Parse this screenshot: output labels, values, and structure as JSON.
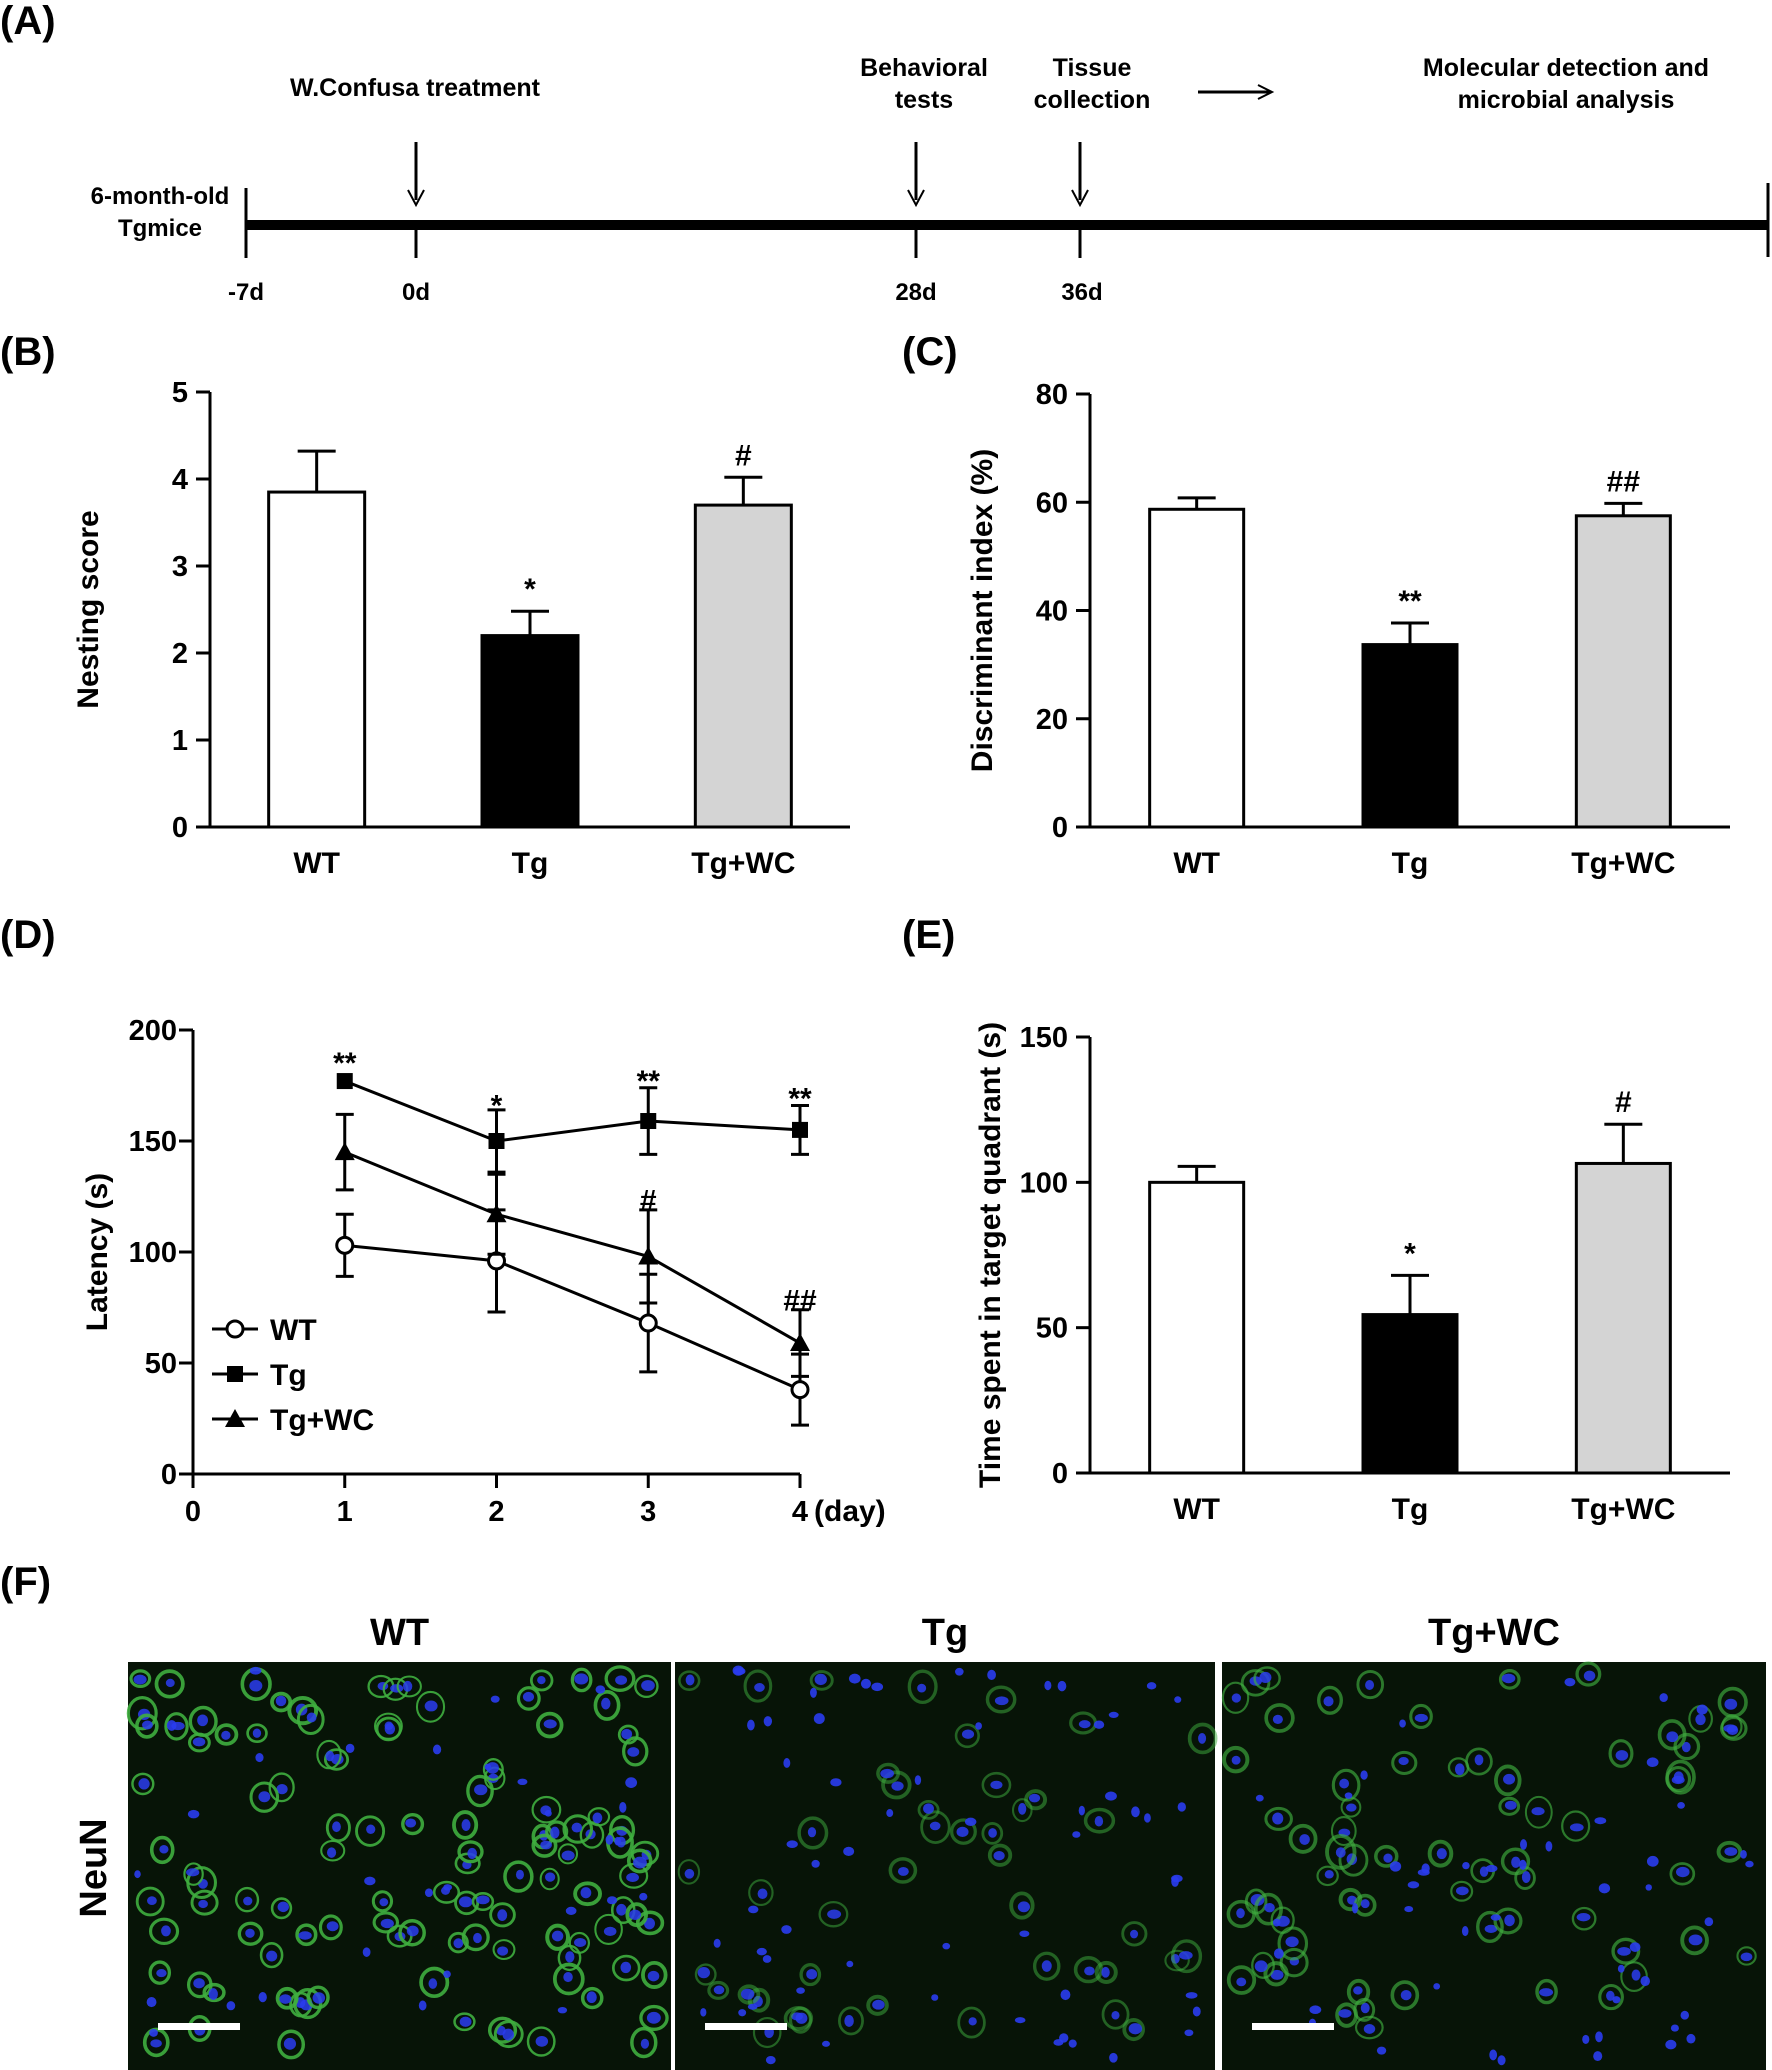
{
  "panel_labels": [
    "(A)",
    "(B)",
    "(C)",
    "(D)",
    "(E)",
    "(F)"
  ],
  "timeline": {
    "start_label": [
      "6-month-old",
      "Tgmice"
    ],
    "ticks": [
      "-7d",
      "0d",
      "28d",
      "36d"
    ],
    "events": [
      {
        "lines": [
          "W.Confusa treatment"
        ]
      },
      {
        "lines": [
          "Behavioral",
          "tests"
        ]
      },
      {
        "lines": [
          "Tissue",
          "collection"
        ]
      }
    ],
    "outcome": [
      "Molecular detection and",
      "microbial analysis"
    ]
  },
  "colors": {
    "WT": "#ffffff",
    "Tg": "#000000",
    "Tg+WC": "#d4d4d4",
    "axis": "#000000"
  },
  "chart_data": [
    {
      "panel": "(B)",
      "type": "bar",
      "categories": [
        "WT",
        "Tg",
        "Tg+WC"
      ],
      "values": [
        3.85,
        2.2,
        3.7
      ],
      "errors": [
        0.47,
        0.28,
        0.32
      ],
      "annotations": [
        "",
        "*",
        "#"
      ],
      "ylabel": "Nesting score",
      "xlabel": "",
      "ylim": [
        0,
        5
      ],
      "yticks": [
        0,
        1,
        2,
        3,
        4,
        5
      ]
    },
    {
      "panel": "(C)",
      "type": "bar",
      "categories": [
        "WT",
        "Tg",
        "Tg+WC"
      ],
      "values": [
        58.7,
        33.7,
        57.5
      ],
      "errors": [
        2.1,
        4.0,
        2.3
      ],
      "annotations": [
        "",
        "**",
        "##"
      ],
      "ylabel": "Discriminant index (%)",
      "xlabel": "",
      "ylim": [
        0,
        80
      ],
      "yticks": [
        0,
        20,
        40,
        60,
        80
      ]
    },
    {
      "panel": "(D)",
      "type": "line",
      "x": [
        1,
        2,
        3,
        4
      ],
      "series": [
        {
          "name": "WT",
          "marker": "circle-open",
          "values": [
            103,
            96,
            68,
            38
          ],
          "errors": [
            14,
            23,
            22,
            16
          ]
        },
        {
          "name": "Tg",
          "marker": "square",
          "values": [
            177,
            150,
            159,
            155
          ],
          "errors": [
            0,
            14,
            15,
            11
          ]
        },
        {
          "name": "Tg+WC",
          "marker": "triangle",
          "values": [
            145,
            117,
            98,
            59
          ],
          "errors": [
            17,
            18,
            21,
            15
          ]
        }
      ],
      "annotations": [
        {
          "x": 1,
          "y": 186,
          "text": "**"
        },
        {
          "x": 2,
          "y": 167,
          "text": "*"
        },
        {
          "x": 3,
          "y": 178,
          "text": "**"
        },
        {
          "x": 4,
          "y": 170,
          "text": "**"
        },
        {
          "x": 3,
          "y": 124,
          "text": "#"
        },
        {
          "x": 4,
          "y": 79,
          "text": "##"
        }
      ],
      "ylabel": "Latency (s)",
      "xlabel": "",
      "x_unit": "(day)",
      "xlim": [
        0,
        4
      ],
      "ylim": [
        0,
        200
      ],
      "xticks": [
        0,
        1,
        2,
        3,
        4
      ],
      "yticks": [
        0,
        50,
        100,
        150,
        200
      ],
      "legend": "bottom-left"
    },
    {
      "panel": "(E)",
      "type": "bar",
      "categories": [
        "WT",
        "Tg",
        "Tg+WC"
      ],
      "values": [
        100,
        54.5,
        106.5
      ],
      "errors": [
        5.5,
        13.5,
        13.5
      ],
      "annotations": [
        "",
        "*",
        "#"
      ],
      "ylabel": "Time spent in target quadrant (s)",
      "xlabel": "",
      "ylim": [
        0,
        150
      ],
      "yticks": [
        0,
        50,
        100,
        150
      ]
    }
  ],
  "micrographs": {
    "row_label": "NeuN",
    "columns": [
      "WT",
      "Tg",
      "Tg+WC"
    ],
    "green_level": [
      1.0,
      0.3,
      0.55
    ],
    "stain_colors": {
      "background": "#071407",
      "neuron": "#3fae3f",
      "nucleus": "#2a3cf0",
      "scale_bar": "#ffffff"
    }
  }
}
